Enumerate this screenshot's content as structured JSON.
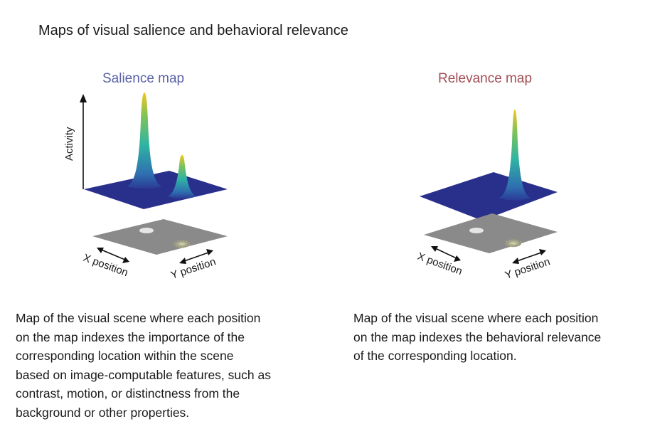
{
  "title": "Maps of visual salience and behavioral relevance",
  "salience": {
    "heading": "Salience map",
    "y_axis_label": "Activity",
    "x_label": "X position",
    "y_label": "Y position",
    "description_lines": [
      "Map of the visual scene where each position",
      "on the map indexes the importance of the",
      "corresponding location within the scene",
      "based on image-computable features, such as",
      "contrast, motion, or distinctness from the",
      "background or other properties."
    ]
  },
  "relevance": {
    "heading": "Relevance map",
    "x_label": "X position",
    "y_label": "Y position",
    "description_lines": [
      "Map of the visual scene where each position",
      "on the map indexes the behavioral relevance",
      "of the corresponding location."
    ]
  },
  "colors": {
    "plane": "#29308c",
    "scene": "#8a8a8a",
    "peak_top": "#f2c61f",
    "peak_mid": "#2fb3a4",
    "peak_base": "#2b3a96",
    "salience_heading": "#5a62a8",
    "relevance_heading": "#a24d56"
  }
}
